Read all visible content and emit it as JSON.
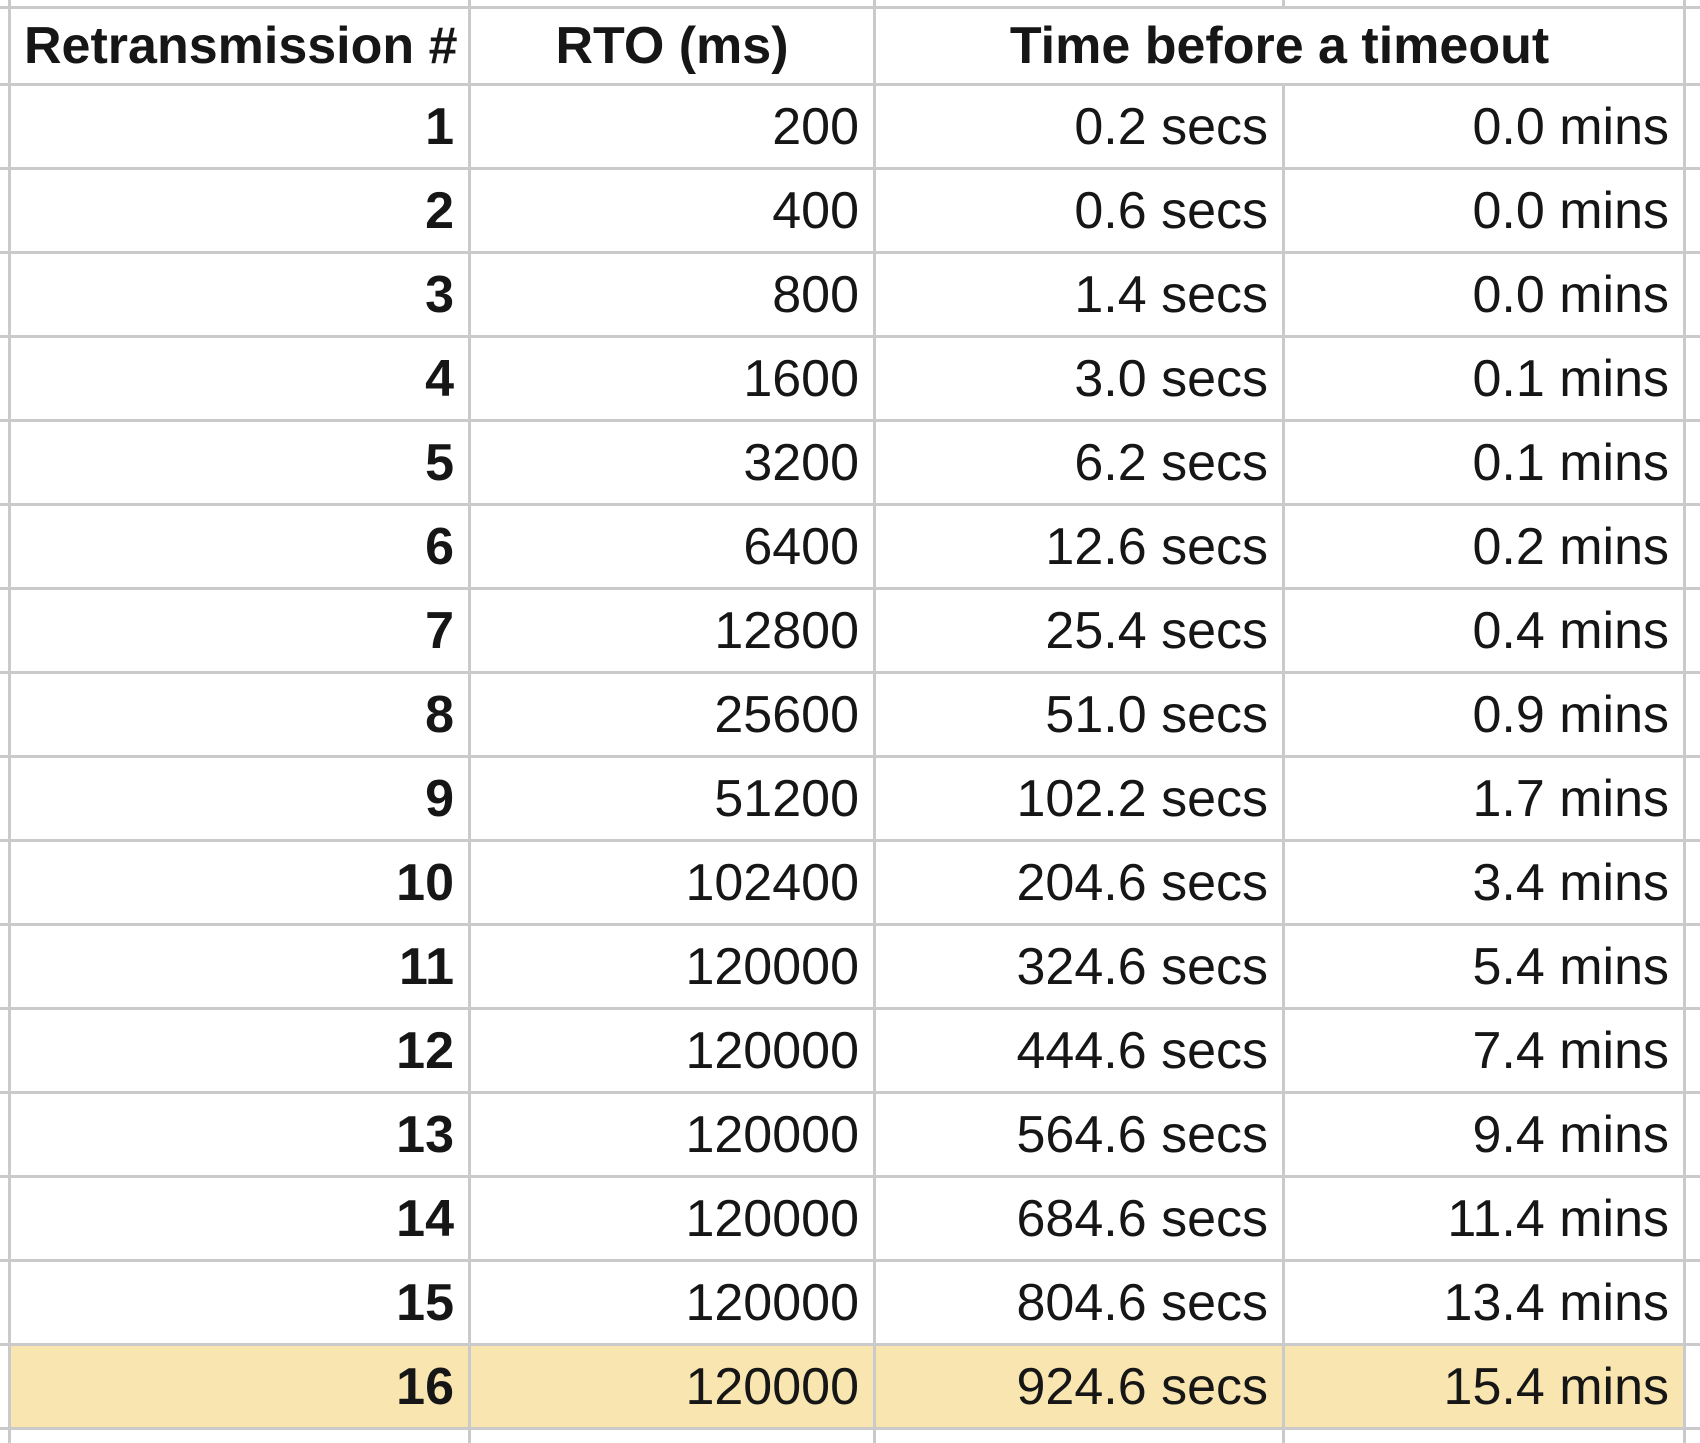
{
  "table": {
    "headers": {
      "col1": "Retransmission #",
      "col2": "RTO (ms)",
      "col34": "Time before a timeout"
    },
    "highlight_color": "#F8E5B0",
    "grid_color": "#CACACA",
    "rows": [
      {
        "num": "1",
        "rto": "200",
        "secs": "0.2 secs",
        "mins": "0.0 mins",
        "highlighted": false
      },
      {
        "num": "2",
        "rto": "400",
        "secs": "0.6 secs",
        "mins": "0.0 mins",
        "highlighted": false
      },
      {
        "num": "3",
        "rto": "800",
        "secs": "1.4 secs",
        "mins": "0.0 mins",
        "highlighted": false
      },
      {
        "num": "4",
        "rto": "1600",
        "secs": "3.0 secs",
        "mins": "0.1 mins",
        "highlighted": false
      },
      {
        "num": "5",
        "rto": "3200",
        "secs": "6.2 secs",
        "mins": "0.1 mins",
        "highlighted": false
      },
      {
        "num": "6",
        "rto": "6400",
        "secs": "12.6 secs",
        "mins": "0.2 mins",
        "highlighted": false
      },
      {
        "num": "7",
        "rto": "12800",
        "secs": "25.4 secs",
        "mins": "0.4 mins",
        "highlighted": false
      },
      {
        "num": "8",
        "rto": "25600",
        "secs": "51.0 secs",
        "mins": "0.9 mins",
        "highlighted": false
      },
      {
        "num": "9",
        "rto": "51200",
        "secs": "102.2 secs",
        "mins": "1.7 mins",
        "highlighted": false
      },
      {
        "num": "10",
        "rto": "102400",
        "secs": "204.6 secs",
        "mins": "3.4 mins",
        "highlighted": false
      },
      {
        "num": "11",
        "rto": "120000",
        "secs": "324.6 secs",
        "mins": "5.4 mins",
        "highlighted": false
      },
      {
        "num": "12",
        "rto": "120000",
        "secs": "444.6 secs",
        "mins": "7.4 mins",
        "highlighted": false
      },
      {
        "num": "13",
        "rto": "120000",
        "secs": "564.6 secs",
        "mins": "9.4 mins",
        "highlighted": false
      },
      {
        "num": "14",
        "rto": "120000",
        "secs": "684.6 secs",
        "mins": "11.4 mins",
        "highlighted": false
      },
      {
        "num": "15",
        "rto": "120000",
        "secs": "804.6 secs",
        "mins": "13.4 mins",
        "highlighted": false
      },
      {
        "num": "16",
        "rto": "120000",
        "secs": "924.6 secs",
        "mins": "15.4 mins",
        "highlighted": true
      }
    ]
  }
}
